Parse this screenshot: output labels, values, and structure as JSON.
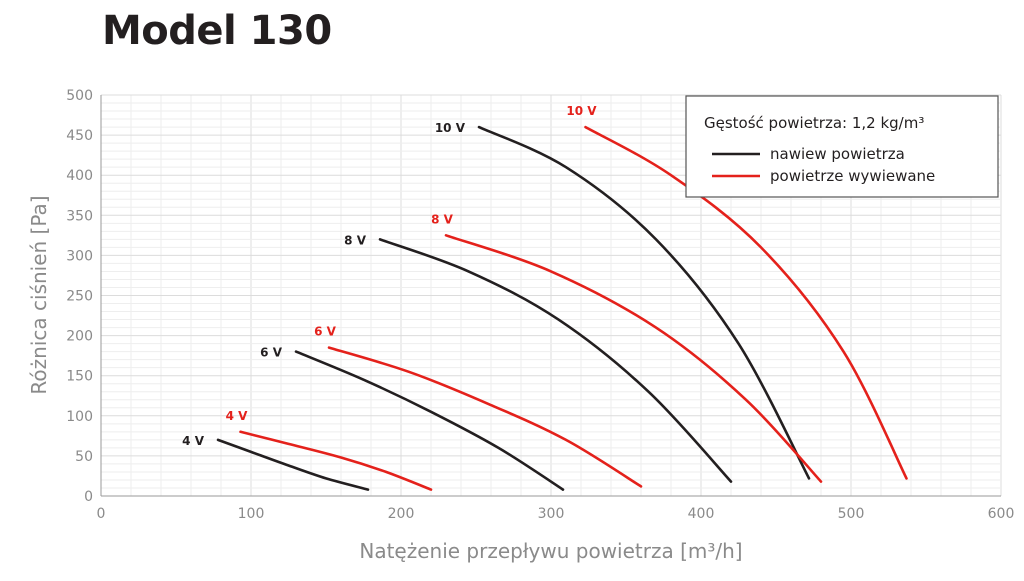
{
  "page_title": "Model 130",
  "chart_data": {
    "type": "line",
    "title": "Model 130",
    "xlabel": "Natężenie przepływu powietrza [m³/h]",
    "ylabel": "Różnica ciśnień [Pa]",
    "xlim": [
      0,
      600
    ],
    "ylim": [
      0,
      500
    ],
    "xticks": [
      0,
      100,
      200,
      300,
      400,
      500,
      600
    ],
    "yticks": [
      0,
      50,
      100,
      150,
      200,
      250,
      300,
      350,
      400,
      450,
      500
    ],
    "grid": true,
    "legend": {
      "title": "Gęstość powietrza: 1,2 kg/m³",
      "placement": "top-right",
      "entries": [
        {
          "label": "nawiew powietrza",
          "color": "#231f20"
        },
        {
          "label": "powietrze wywiewane",
          "color": "#e4211b"
        }
      ]
    },
    "series": [
      {
        "name": "4 V",
        "group": "nawiew powietrza",
        "color": "#231f20",
        "x": [
          78,
          100,
          125,
          150,
          178
        ],
        "y": [
          70,
          55,
          38,
          22,
          8
        ]
      },
      {
        "name": "6 V",
        "group": "nawiew powietrza",
        "color": "#231f20",
        "x": [
          130,
          175,
          220,
          265,
          308
        ],
        "y": [
          180,
          145,
          105,
          60,
          8
        ]
      },
      {
        "name": "8 V",
        "group": "nawiew powietrza",
        "color": "#231f20",
        "x": [
          186,
          245,
          305,
          365,
          420
        ],
        "y": [
          320,
          280,
          220,
          130,
          18
        ]
      },
      {
        "name": "10 V",
        "group": "nawiew powietrza",
        "color": "#231f20",
        "x": [
          252,
          310,
          370,
          425,
          472
        ],
        "y": [
          460,
          410,
          320,
          190,
          22
        ]
      },
      {
        "name": "4 V",
        "group": "powietrze wywiewane",
        "color": "#e4211b",
        "x": [
          93,
          125,
          160,
          190,
          220
        ],
        "y": [
          80,
          65,
          48,
          30,
          8
        ]
      },
      {
        "name": "6 V",
        "group": "powietrze wywiewane",
        "color": "#e4211b",
        "x": [
          152,
          205,
          258,
          310,
          360
        ],
        "y": [
          185,
          155,
          115,
          70,
          12
        ]
      },
      {
        "name": "8 V",
        "group": "powietrze wywiewane",
        "color": "#e4211b",
        "x": [
          230,
          300,
          370,
          430,
          480
        ],
        "y": [
          325,
          280,
          210,
          120,
          18
        ]
      },
      {
        "name": "10 V",
        "group": "powietrze wywiewane",
        "color": "#e4211b",
        "x": [
          323,
          380,
          440,
          495,
          537
        ],
        "y": [
          460,
          400,
          310,
          180,
          22
        ]
      }
    ]
  }
}
